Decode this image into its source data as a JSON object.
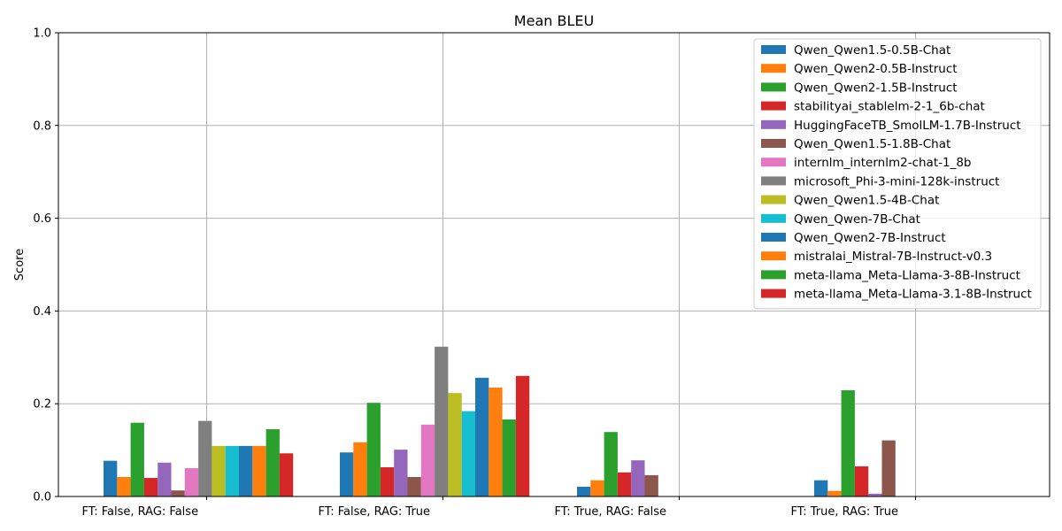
{
  "chart_data": {
    "type": "bar",
    "title": "Mean BLEU",
    "xlabel": "",
    "ylabel": "Score",
    "ylim": [
      0,
      1
    ],
    "yticks": [
      "0.0",
      "0.2",
      "0.4",
      "0.6",
      "0.8",
      "1.0"
    ],
    "grid": true,
    "legend_position": "top-right",
    "categories": [
      "FT: False, RAG: False",
      "FT: False, RAG: True",
      "FT: True, RAG: False",
      "FT: True, RAG: True"
    ],
    "series": [
      {
        "name": "Qwen_Qwen1.5-0.5B-Chat",
        "color": "#1f77b4",
        "values": [
          0.077,
          0.095,
          0.021,
          0.035
        ]
      },
      {
        "name": "Qwen_Qwen2-0.5B-Instruct",
        "color": "#ff7f0e",
        "values": [
          0.042,
          0.117,
          0.035,
          0.012
        ]
      },
      {
        "name": "Qwen_Qwen2-1.5B-Instruct",
        "color": "#2ca02c",
        "values": [
          0.159,
          0.202,
          0.139,
          0.229
        ]
      },
      {
        "name": "stabilityai_stablelm-2-1_6b-chat",
        "color": "#d62728",
        "values": [
          0.04,
          0.063,
          0.052,
          0.065
        ]
      },
      {
        "name": "HuggingFaceTB_SmolLM-1.7B-Instruct",
        "color": "#9467bd",
        "values": [
          0.073,
          0.101,
          0.078,
          0.006
        ]
      },
      {
        "name": "Qwen_Qwen1.5-1.8B-Chat",
        "color": "#8c564b",
        "values": [
          0.013,
          0.042,
          0.046,
          0.121
        ]
      },
      {
        "name": "internlm_internlm2-chat-1_8b",
        "color": "#e377c2",
        "values": [
          0.061,
          0.155,
          0,
          0
        ]
      },
      {
        "name": "microsoft_Phi-3-mini-128k-instruct",
        "color": "#7f7f7f",
        "values": [
          0.163,
          0.323,
          0,
          0
        ]
      },
      {
        "name": "Qwen_Qwen1.5-4B-Chat",
        "color": "#bcbd22",
        "values": [
          0.109,
          0.223,
          0,
          0
        ]
      },
      {
        "name": "Qwen_Qwen-7B-Chat",
        "color": "#17becf",
        "values": [
          0.109,
          0.184,
          0,
          0
        ]
      },
      {
        "name": "Qwen_Qwen2-7B-Instruct",
        "color": "#1f77b4",
        "values": [
          0.109,
          0.256,
          0,
          0
        ]
      },
      {
        "name": "mistralai_Mistral-7B-Instruct-v0.3",
        "color": "#ff7f0e",
        "values": [
          0.109,
          0.235,
          0,
          0
        ]
      },
      {
        "name": "meta-llama_Meta-Llama-3-8B-Instruct",
        "color": "#2ca02c",
        "values": [
          0.145,
          0.166,
          0,
          0
        ]
      },
      {
        "name": "meta-llama_Meta-Llama-3.1-8B-Instruct",
        "color": "#d62728",
        "values": [
          0.093,
          0.26,
          0,
          0
        ]
      }
    ]
  }
}
